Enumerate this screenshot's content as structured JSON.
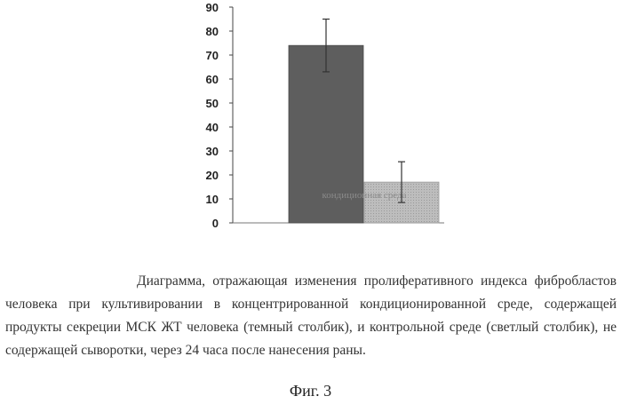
{
  "chart_data": {
    "type": "bar",
    "categories": [
      "",
      ""
    ],
    "series": [
      {
        "values": [
          74,
          17
        ],
        "errors": [
          11,
          8.5
        ]
      }
    ],
    "bar_colors": [
      "#5e5e5e",
      "#bdbdbd"
    ],
    "ylim": [
      0,
      90
    ],
    "yticks": [
      0,
      10,
      20,
      30,
      40,
      50,
      60,
      70,
      80,
      90
    ],
    "title": "",
    "xlabel": "",
    "ylabel": "",
    "grid": false,
    "bar_overlay_text": "кондиционная среда"
  },
  "caption": "Диаграмма, отражающая изменения пролиферативного индекса фибробластов человека при культивировании в концентрированной кондиционированной среде, содержащей продукты секреции МСК ЖТ человека (темный столбик), и контрольной среде (светлый столбик), не содержащей сыворотки, через 24 часа после нанесения раны.",
  "figure_label": "Фиг. 3"
}
